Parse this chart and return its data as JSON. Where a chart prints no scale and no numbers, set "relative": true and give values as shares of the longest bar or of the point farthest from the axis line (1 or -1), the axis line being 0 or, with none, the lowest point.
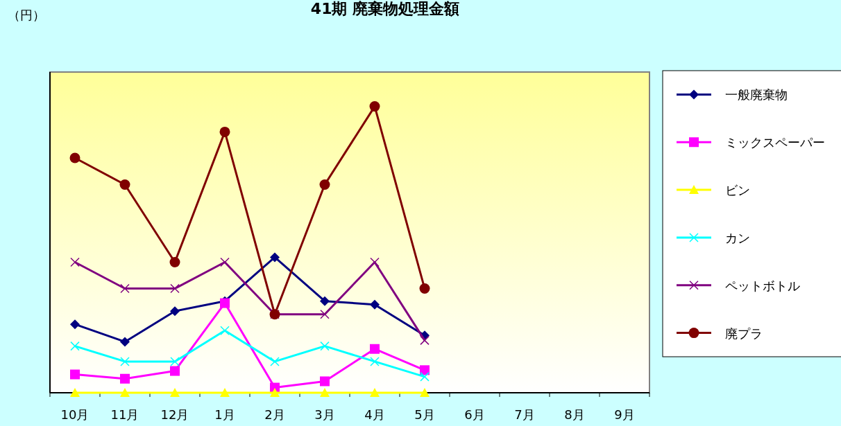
{
  "chart_data": {
    "type": "line",
    "title": "41期 廃棄物処理金額",
    "annotations": [
      "（円）"
    ],
    "relative": true,
    "legend": "right",
    "categories": [
      "10月",
      "11月",
      "12月",
      "1月",
      "2月",
      "3月",
      "4月",
      "5月",
      "6月",
      "7月",
      "8月",
      "9月"
    ],
    "series": [
      {
        "name": "一般廃棄物",
        "color": "#000080",
        "marker": "diamond",
        "values": [
          0.239,
          0.178,
          0.285,
          0.32,
          0.473,
          0.32,
          0.308,
          0.2,
          null,
          null,
          null,
          null
        ]
      },
      {
        "name": "ミックスペーパー",
        "color": "#ff00ff",
        "marker": "square",
        "values": [
          0.064,
          0.049,
          0.076,
          0.313,
          0.018,
          0.04,
          0.153,
          0.079,
          null,
          null,
          null,
          null
        ]
      },
      {
        "name": "ビン",
        "color": "#ffff00",
        "marker": "triangle",
        "values": [
          0,
          0,
          0,
          0,
          0,
          0,
          0,
          0,
          null,
          null,
          null,
          null
        ]
      },
      {
        "name": "カン",
        "color": "#00ffff",
        "marker": "cross",
        "values": [
          0.163,
          0.109,
          0.109,
          0.217,
          0.109,
          0.163,
          0.109,
          0.056,
          null,
          null,
          null,
          null
        ]
      },
      {
        "name": "ペットボトル",
        "color": "#800080",
        "marker": "cross",
        "values": [
          0.456,
          0.364,
          0.364,
          0.456,
          0.274,
          0.274,
          0.456,
          0.183,
          null,
          null,
          null,
          null
        ]
      },
      {
        "name": "廃プラ",
        "color": "#800000",
        "marker": "circle",
        "values": [
          0.82,
          0.727,
          0.456,
          0.911,
          0.274,
          0.727,
          1,
          0.364,
          null,
          null,
          null,
          null
        ]
      }
    ]
  }
}
